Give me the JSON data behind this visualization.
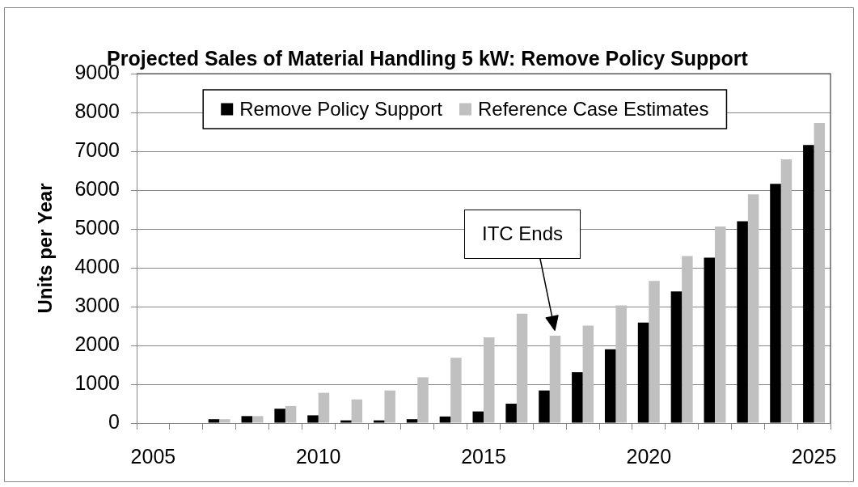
{
  "chart_data": {
    "type": "bar",
    "title": "Projected Sales of Material Handling 5 kW: Remove Policy Support",
    "ylabel": "Units per Year",
    "categories": [
      "2005",
      null,
      null,
      null,
      null,
      "2010",
      null,
      null,
      null,
      null,
      "2015",
      null,
      null,
      null,
      null,
      "2020",
      null,
      null,
      null,
      null,
      "2025"
    ],
    "series": [
      {
        "name": "Remove Policy Support",
        "color": "#000000",
        "values": [
          0,
          0,
          100,
          180,
          370,
          200,
          70,
          70,
          100,
          170,
          300,
          500,
          840,
          1310,
          1900,
          2590,
          3390,
          4260,
          5200,
          6160,
          7160
        ]
      },
      {
        "name": "Reference Case Estimates",
        "color": "#c0c0c0",
        "values": [
          0,
          0,
          100,
          180,
          440,
          780,
          610,
          840,
          1180,
          1680,
          2210,
          2820,
          2250,
          2510,
          3030,
          3660,
          4300,
          5060,
          5890,
          6790,
          7730
        ]
      }
    ],
    "ylim": [
      0,
      9000
    ],
    "yticks": [
      0,
      1000,
      2000,
      3000,
      4000,
      5000,
      6000,
      7000,
      8000,
      9000
    ],
    "grid": "y",
    "legend": "top",
    "annotations": [
      "ITC Ends"
    ]
  }
}
